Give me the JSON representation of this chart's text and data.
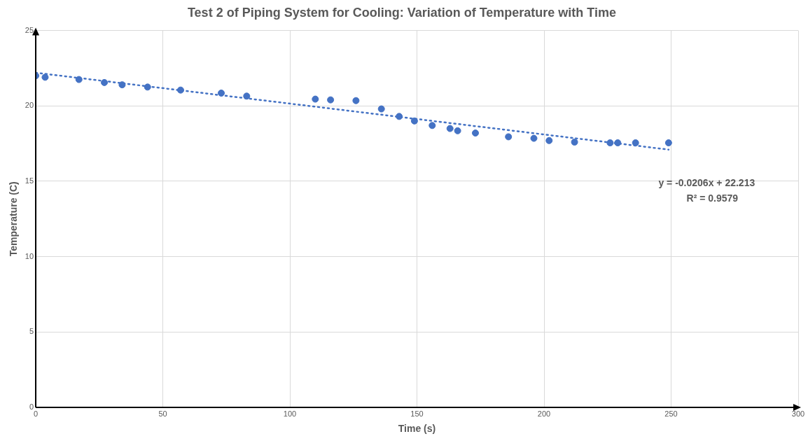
{
  "chart_data": {
    "type": "scatter",
    "title": "Test 2 of Piping System for Cooling: Variation of Temperature with Time",
    "xlabel": "Time (s)",
    "ylabel": "Temperature (C)",
    "series": [
      {
        "color": "#4472c4",
        "marker": "circle",
        "x": [
          0,
          3.7,
          17,
          27,
          34,
          44,
          57,
          73,
          83,
          110,
          116,
          126,
          136,
          143,
          149,
          156,
          163,
          166,
          173,
          186,
          196,
          202,
          212,
          226,
          229,
          236,
          249
        ],
        "values": [
          22.0,
          21.9,
          21.75,
          21.55,
          21.4,
          21.25,
          21.05,
          20.85,
          20.65,
          20.45,
          20.4,
          20.35,
          19.8,
          19.3,
          19.0,
          18.7,
          18.5,
          18.35,
          18.2,
          17.95,
          17.85,
          17.7,
          17.6,
          17.55,
          17.55,
          17.55,
          17.55
        ]
      },
      {
        "type": "line",
        "color": "#4472c4",
        "line_style": "dotted",
        "x": [
          0,
          249
        ],
        "values": [
          22.2,
          17.1
        ]
      }
    ],
    "annotations": [
      "y = -0.0206x + 22.213",
      "R² = 0.9579"
    ],
    "xlim": [
      0,
      300
    ],
    "xticks": [
      0,
      50,
      100,
      150,
      200,
      250,
      300
    ],
    "ylim": [
      0,
      25
    ],
    "yticks": [
      0,
      5,
      10,
      15,
      20,
      25
    ],
    "grid": true,
    "legend": false
  }
}
